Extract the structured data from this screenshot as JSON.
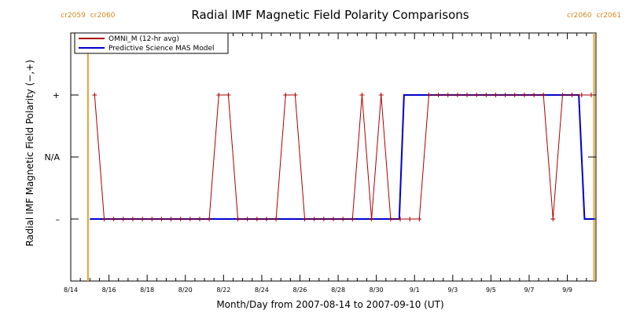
{
  "colors": {
    "omni": "#aa0000",
    "model": "#0000cc",
    "carrington": "#e8a030",
    "axis": "#000000",
    "cr_label": "#d08820"
  },
  "chart_data": {
    "type": "line",
    "title": "Radial IMF Magnetic Field Polarity Comparisons",
    "xlabel": "Month/Day from 2007-08-14 to 2007-09-10 (UT)",
    "ylabel": "Radial IMF Magnetic Field Polarity (−,+)",
    "x_unit": "days since 2007-08-14 00:00 UT",
    "xlim": [
      0,
      27.5
    ],
    "ylim": [
      -2,
      2
    ],
    "x_ticks": [
      {
        "value": 0,
        "label": "8/14"
      },
      {
        "value": 2,
        "label": "8/16"
      },
      {
        "value": 4,
        "label": "8/18"
      },
      {
        "value": 6,
        "label": "8/20"
      },
      {
        "value": 8,
        "label": "8/22"
      },
      {
        "value": 10,
        "label": "8/24"
      },
      {
        "value": 12,
        "label": "8/26"
      },
      {
        "value": 14,
        "label": "8/28"
      },
      {
        "value": 16,
        "label": "8/30"
      },
      {
        "value": 18,
        "label": "9/1"
      },
      {
        "value": 20,
        "label": "9/3"
      },
      {
        "value": 22,
        "label": "9/5"
      },
      {
        "value": 24,
        "label": "9/7"
      },
      {
        "value": 26,
        "label": "9/9"
      }
    ],
    "y_ticks": [
      {
        "value": 1,
        "label": "+"
      },
      {
        "value": 0,
        "label": "N/A"
      },
      {
        "value": -1,
        "label": "–"
      }
    ],
    "legend": {
      "placement": "top-left",
      "entries": [
        "OMNI_M (12-hr avg)",
        "Predictive Science MAS Model"
      ]
    },
    "carrington": [
      {
        "x": 0.9,
        "left_label": "cr2059",
        "right_label": "cr2060"
      },
      {
        "x": 27.4,
        "left_label": "cr2060",
        "right_label": "cr2061"
      }
    ],
    "series": [
      {
        "name": "OMNI_M (12-hr avg)",
        "markers": true,
        "x": [
          1.25,
          1.75,
          2.25,
          2.75,
          3.25,
          3.75,
          4.25,
          4.75,
          5.25,
          5.75,
          6.25,
          6.75,
          7.25,
          7.75,
          8.25,
          8.75,
          9.25,
          9.75,
          10.25,
          10.75,
          11.25,
          11.75,
          12.25,
          12.75,
          13.25,
          13.75,
          14.25,
          14.75,
          15.25,
          15.75,
          16.25,
          16.75,
          17.25,
          17.75,
          18.25,
          18.75,
          19.25,
          19.75,
          20.25,
          20.75,
          21.25,
          21.75,
          22.25,
          22.75,
          23.25,
          23.75,
          24.25,
          24.75,
          25.25,
          25.75,
          26.25,
          26.75,
          27.25
        ],
        "y": [
          1,
          -1,
          -1,
          -1,
          -1,
          -1,
          -1,
          -1,
          -1,
          -1,
          -1,
          -1,
          -1,
          1,
          1,
          -1,
          -1,
          -1,
          -1,
          -1,
          1,
          1,
          -1,
          -1,
          -1,
          -1,
          -1,
          -1,
          1,
          -1,
          1,
          -1,
          -1,
          -1,
          -1,
          1,
          1,
          1,
          1,
          1,
          1,
          1,
          1,
          1,
          1,
          1,
          1,
          1,
          -1,
          1,
          1,
          1,
          1
        ]
      },
      {
        "name": "Predictive Science MAS Model",
        "markers": false,
        "x": [
          1.0,
          17.2,
          17.45,
          26.6,
          26.9,
          27.4
        ],
        "y": [
          -1,
          -1,
          1,
          1,
          -1,
          -1
        ]
      }
    ]
  }
}
